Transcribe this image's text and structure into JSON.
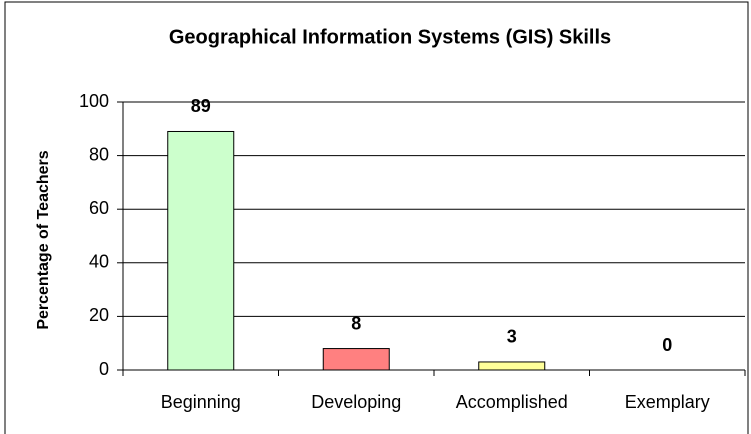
{
  "chart_data": {
    "type": "bar",
    "title": "Geographical Information Systems (GIS) Skills",
    "y_label": "Percentage of Teachers",
    "categories": [
      "Beginning",
      "Developing",
      "Accomplished",
      "Exemplary"
    ],
    "values": [
      89,
      8,
      3,
      0
    ],
    "colors": [
      "#ccffcc",
      "#ff8080",
      "#ffff99",
      "#99ccff"
    ],
    "ylim": [
      0,
      100
    ],
    "yticks": [
      0,
      20,
      40,
      60,
      80,
      100
    ],
    "grid": true
  }
}
